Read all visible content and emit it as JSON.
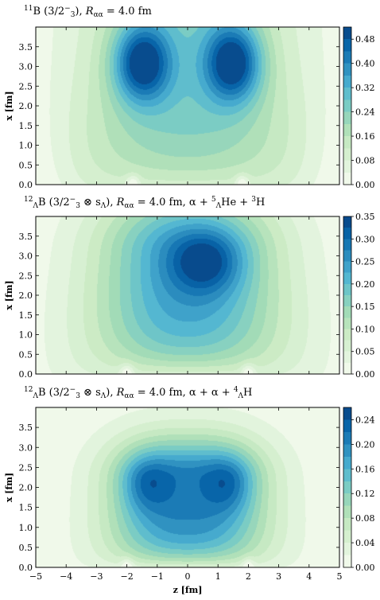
{
  "colormap": [
    "#f7fcf0",
    "#e0f3db",
    "#ccebc5",
    "#a8ddb5",
    "#7bccc4",
    "#4eb3d3",
    "#2b8cbe",
    "#0868ac",
    "#084081"
  ],
  "chart_data": [
    {
      "type": "heatmap",
      "title_parts": [
        "",
        "11",
        "B (3/2",
        "−",
        "3",
        "),  ",
        "R",
        "αα",
        " = 4.0 fm"
      ],
      "ylabel": "x [fm]",
      "xlim": [
        -5,
        5
      ],
      "ylim": [
        0,
        4
      ],
      "yticks": [
        "0.0",
        "0.5",
        "1.0",
        "1.5",
        "2.0",
        "2.5",
        "3.0",
        "3.5"
      ],
      "ytick_values": [
        0,
        0.5,
        1,
        1.5,
        2,
        2.5,
        3,
        3.5
      ],
      "xticks": [],
      "colorbar_range": [
        0,
        0.52
      ],
      "colorbar_ticks": [
        "0.00",
        "0.08",
        "0.16",
        "0.24",
        "0.32",
        "0.40",
        "0.48"
      ],
      "colorbar_tick_values": [
        0,
        0.08,
        0.16,
        0.24,
        0.32,
        0.4,
        0.48
      ],
      "peaks": [
        {
          "z": -1.5,
          "x": 3.1,
          "value": 0.5
        },
        {
          "z": 1.5,
          "x": 3.1,
          "value": 0.5
        }
      ],
      "nodes_z": [
        -1.8,
        1.8
      ]
    },
    {
      "type": "heatmap",
      "title_parts": [
        "",
        "12",
        "",
        "Λ",
        "B (3/2",
        "−",
        "3",
        " ⊗ s",
        "Λ",
        "),  ",
        "R",
        "αα",
        " = 4.0 fm,  α + ",
        "5",
        "Λ",
        "He + ",
        "3",
        "H"
      ],
      "ylabel": "x [fm]",
      "xlim": [
        -5,
        5
      ],
      "ylim": [
        0,
        4
      ],
      "yticks": [
        "0.0",
        "0.5",
        "1.0",
        "1.5",
        "2.0",
        "2.5",
        "3.0",
        "3.5"
      ],
      "ytick_values": [
        0,
        0.5,
        1,
        1.5,
        2,
        2.5,
        3,
        3.5
      ],
      "xticks": [],
      "colorbar_range": [
        0,
        0.35
      ],
      "colorbar_ticks": [
        "0.00",
        "0.05",
        "0.10",
        "0.15",
        "0.20",
        "0.25",
        "0.30",
        "0.35"
      ],
      "colorbar_tick_values": [
        0,
        0.05,
        0.1,
        0.15,
        0.2,
        0.25,
        0.3,
        0.35
      ],
      "peaks": [
        {
          "z": 0.6,
          "x": 2.9,
          "value": 0.34
        }
      ],
      "nodes_z": [
        -2.0,
        2.0
      ]
    },
    {
      "type": "heatmap",
      "title_parts": [
        "",
        "12",
        "",
        "Λ",
        "B (3/2",
        "−",
        "3",
        " ⊗ s",
        "Λ",
        "),  ",
        "R",
        "αα",
        " = 4.0 fm,  α + α + ",
        "4",
        "Λ",
        "H"
      ],
      "ylabel": "x [fm]",
      "xlabel": "z [fm]",
      "xlim": [
        -5,
        5
      ],
      "ylim": [
        0,
        4
      ],
      "yticks": [
        "0.0",
        "0.5",
        "1.0",
        "1.5",
        "2.0",
        "2.5",
        "3.0",
        "3.5"
      ],
      "ytick_values": [
        0,
        0.5,
        1,
        1.5,
        2,
        2.5,
        3,
        3.5
      ],
      "xticks": [
        "−5",
        "−4",
        "−3",
        "−2",
        "−1",
        "0",
        "1",
        "2",
        "3",
        "4",
        "5"
      ],
      "xtick_values": [
        -5,
        -4,
        -3,
        -2,
        -1,
        0,
        1,
        2,
        3,
        4,
        5
      ],
      "colorbar_range": [
        0,
        0.26
      ],
      "colorbar_ticks": [
        "0.00",
        "0.04",
        "0.08",
        "0.12",
        "0.16",
        "0.20",
        "0.24"
      ],
      "colorbar_tick_values": [
        0,
        0.04,
        0.08,
        0.12,
        0.16,
        0.2,
        0.24
      ],
      "peaks": [
        {
          "z": -1.4,
          "x": 2.1,
          "value": 0.25
        },
        {
          "z": 1.4,
          "x": 2.1,
          "value": 0.25
        }
      ],
      "nodes_z": [
        -2.0,
        2.0
      ]
    }
  ]
}
